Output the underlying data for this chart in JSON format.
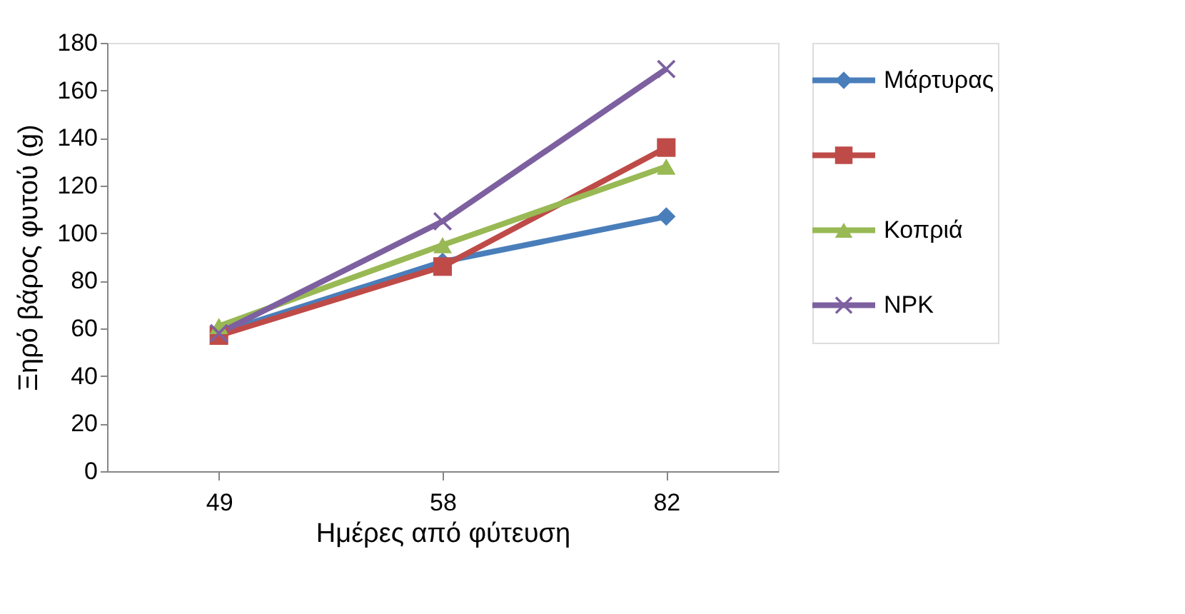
{
  "chart_data": {
    "type": "line",
    "xlabel": "Ημέρες από φύτευση",
    "ylabel": "Ξηρό βάρος φυτού (g)",
    "categories": [
      "49",
      "58",
      "82"
    ],
    "ylim": [
      0,
      180
    ],
    "yticks": [
      0,
      20,
      40,
      60,
      80,
      100,
      120,
      140,
      160,
      180
    ],
    "grid": false,
    "legend": "right",
    "series": [
      {
        "name": "Μάρτυρας",
        "color": "#4a7ebb",
        "marker": "diamond",
        "values": [
          58,
          88,
          107
        ]
      },
      {
        "color": "#be4b48",
        "marker": "square",
        "values": [
          57,
          86,
          136
        ]
      },
      {
        "name": "Κοπριά",
        "color": "#98b954",
        "marker": "triangle",
        "values": [
          61,
          95,
          128
        ]
      },
      {
        "name": "NPK",
        "color": "#7d60a0",
        "marker": "cross",
        "values": [
          58,
          105,
          169
        ]
      }
    ]
  }
}
